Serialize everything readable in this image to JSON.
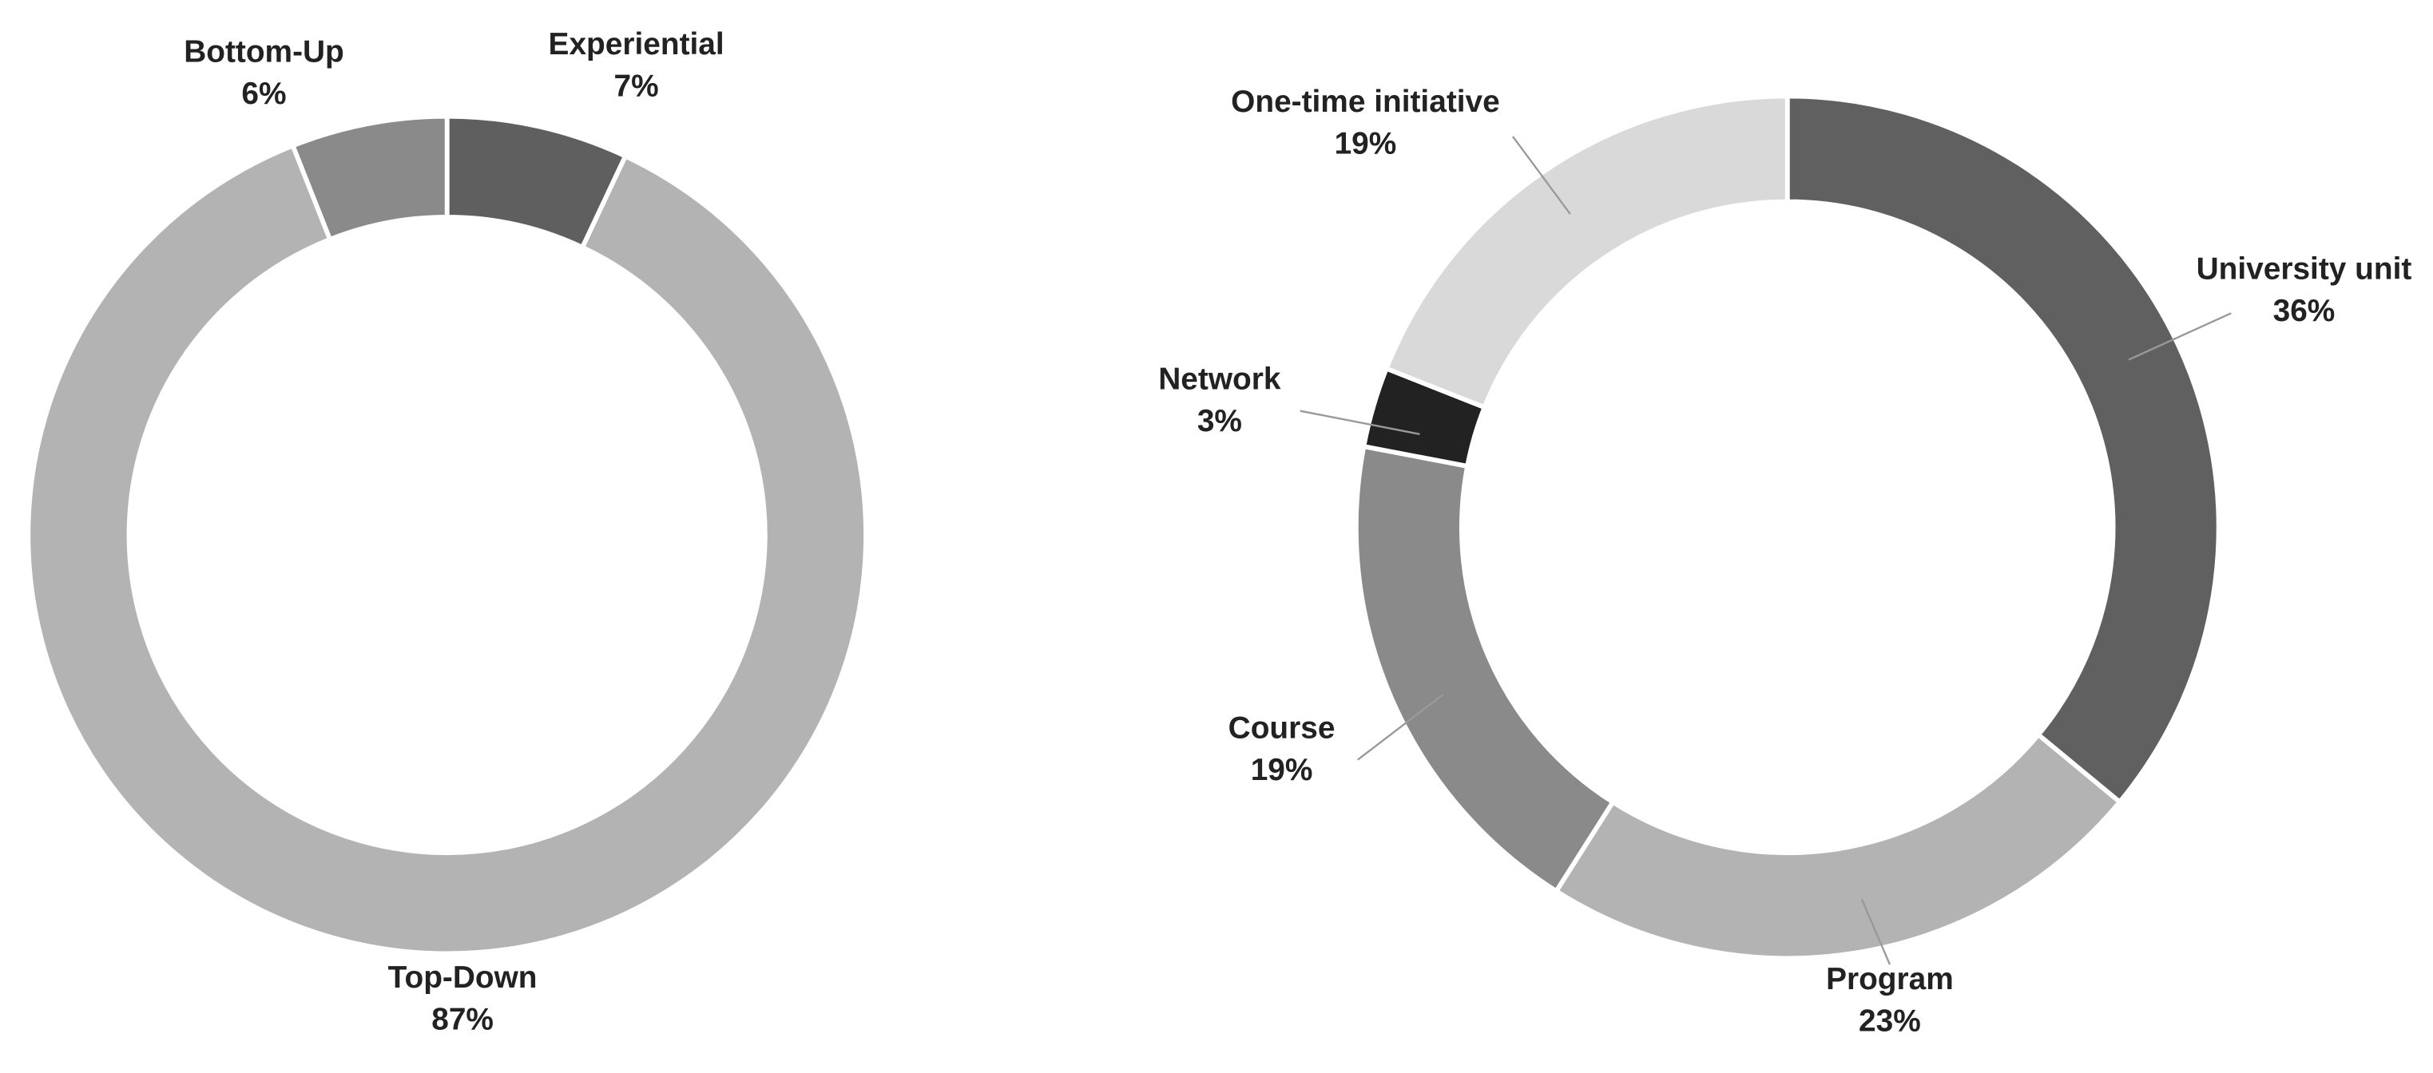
{
  "chart_data": [
    {
      "type": "pie",
      "categories": [
        "Experiential",
        "Top-Down",
        "Bottom-Up"
      ],
      "values": [
        7,
        87,
        6
      ],
      "value_labels": [
        "7%",
        "87%",
        "6%"
      ],
      "colors": [
        "#5f5f5f",
        "#b3b3b3",
        "#8a8a8a"
      ]
    },
    {
      "type": "pie",
      "categories": [
        "University unit",
        "Program",
        "Course",
        "Network",
        "One-time initiative"
      ],
      "values": [
        36,
        23,
        19,
        3,
        19
      ],
      "value_labels": [
        "36%",
        "23%",
        "19%",
        "3%",
        "19%"
      ],
      "colors": [
        "#606060",
        "#b3b3b3",
        "#8a8a8a",
        "#222222",
        "#d9d9d9"
      ]
    }
  ]
}
